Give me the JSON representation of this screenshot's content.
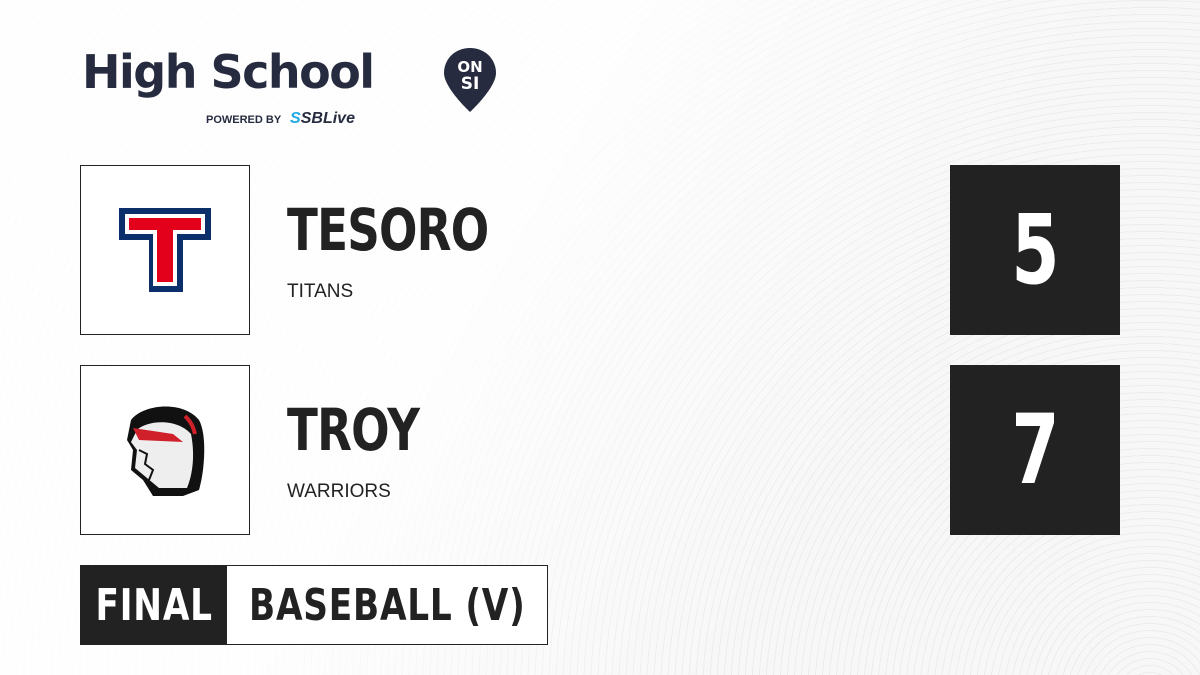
{
  "brand": {
    "title": "High School",
    "badge_top": "ON",
    "badge_bottom": "SI",
    "powered_by": "POWERED BY",
    "partner": "SBLive",
    "partner_mark": "S"
  },
  "teams": [
    {
      "name": "TESORO",
      "mascot": "TITANS",
      "score": "5",
      "logo": "letter-t-logo",
      "colors": {
        "primary": "#0b2f6b",
        "secondary": "#e3001b"
      }
    },
    {
      "name": "TROY",
      "mascot": "WARRIORS",
      "score": "7",
      "logo": "warrior-helmet-logo",
      "logo_text": "WARRIORS",
      "colors": {
        "primary": "#111111",
        "secondary": "#d0202a"
      }
    }
  ],
  "game": {
    "status": "FINAL",
    "sport": "BASEBALL (V)"
  },
  "colors": {
    "dark": "#222222",
    "brand": "#272b3f",
    "accent": "#1fa8e8"
  }
}
